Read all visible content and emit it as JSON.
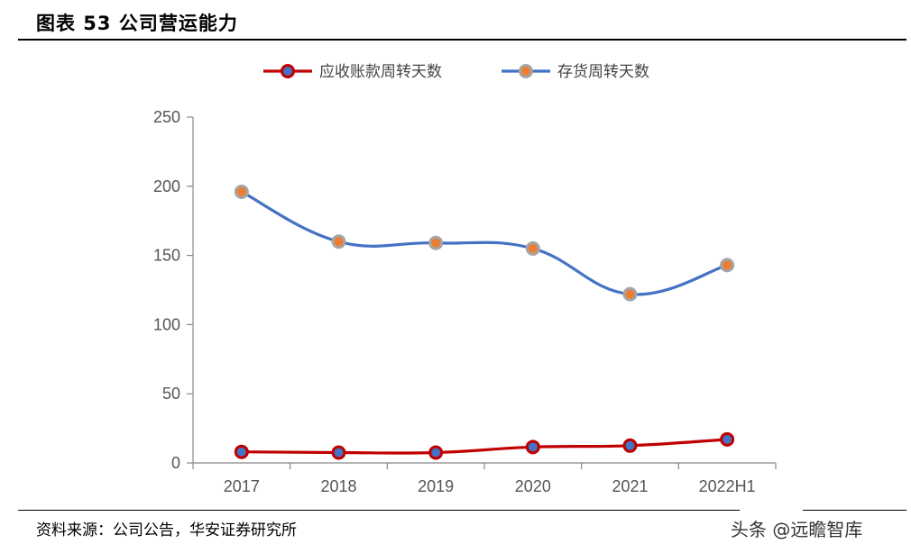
{
  "header": {
    "title": "图表 53 公司营运能力"
  },
  "footer": {
    "source": "资料来源：公司公告，华安证券研究所",
    "watermark": "头条 @远瞻智库"
  },
  "chart_data": {
    "type": "line",
    "categories": [
      "2017",
      "2018",
      "2019",
      "2020",
      "2021",
      "2022H1"
    ],
    "series": [
      {
        "name": "应收账款周转天数",
        "values": [
          8,
          7.5,
          7.5,
          11.5,
          12.5,
          17
        ],
        "color": "#c00000",
        "marker_fill": "#4472c4",
        "marker_edge": "#c00000"
      },
      {
        "name": "存货周转天数",
        "values": [
          196,
          160,
          159,
          155,
          122,
          143
        ],
        "color": "#4472c4",
        "marker_fill": "#ed7d31",
        "marker_edge": "#a5a5a5"
      }
    ],
    "ylim": [
      0,
      250
    ],
    "yticks": [
      0,
      50,
      100,
      150,
      200,
      250
    ],
    "smooth": true,
    "legend": "top",
    "grid": false
  }
}
